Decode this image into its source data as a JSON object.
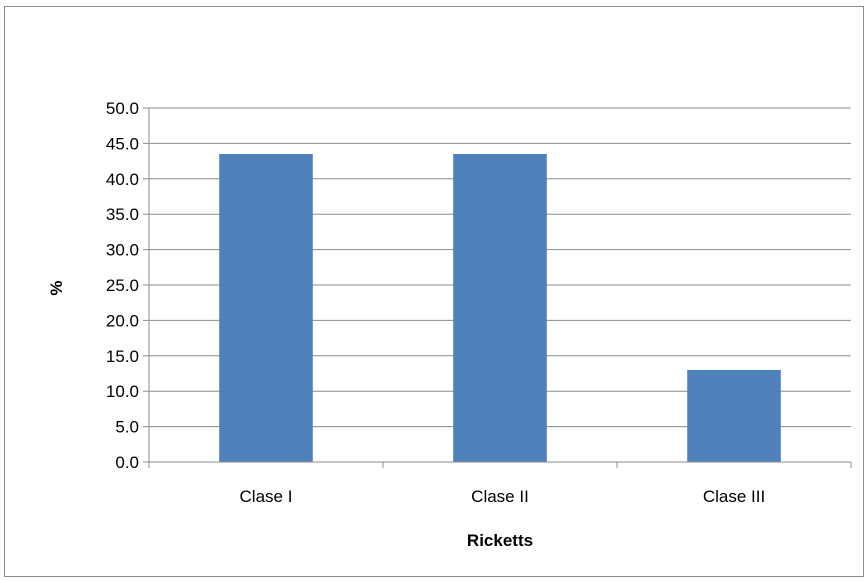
{
  "chart_data": {
    "type": "bar",
    "title": "",
    "xlabel": "Ricketts",
    "ylabel": "%",
    "categories": [
      "Clase I",
      "Clase II",
      "Clase III"
    ],
    "series": [
      {
        "values": [
          43.5,
          43.5,
          13.0
        ],
        "color": "#4F81BD"
      }
    ],
    "ylim": [
      0,
      50
    ],
    "yticks": [
      "0.0",
      "5.0",
      "10.0",
      "15.0",
      "20.0",
      "25.0",
      "30.0",
      "35.0",
      "40.0",
      "45.0",
      "50.0"
    ],
    "grid": true,
    "legend": "none"
  }
}
